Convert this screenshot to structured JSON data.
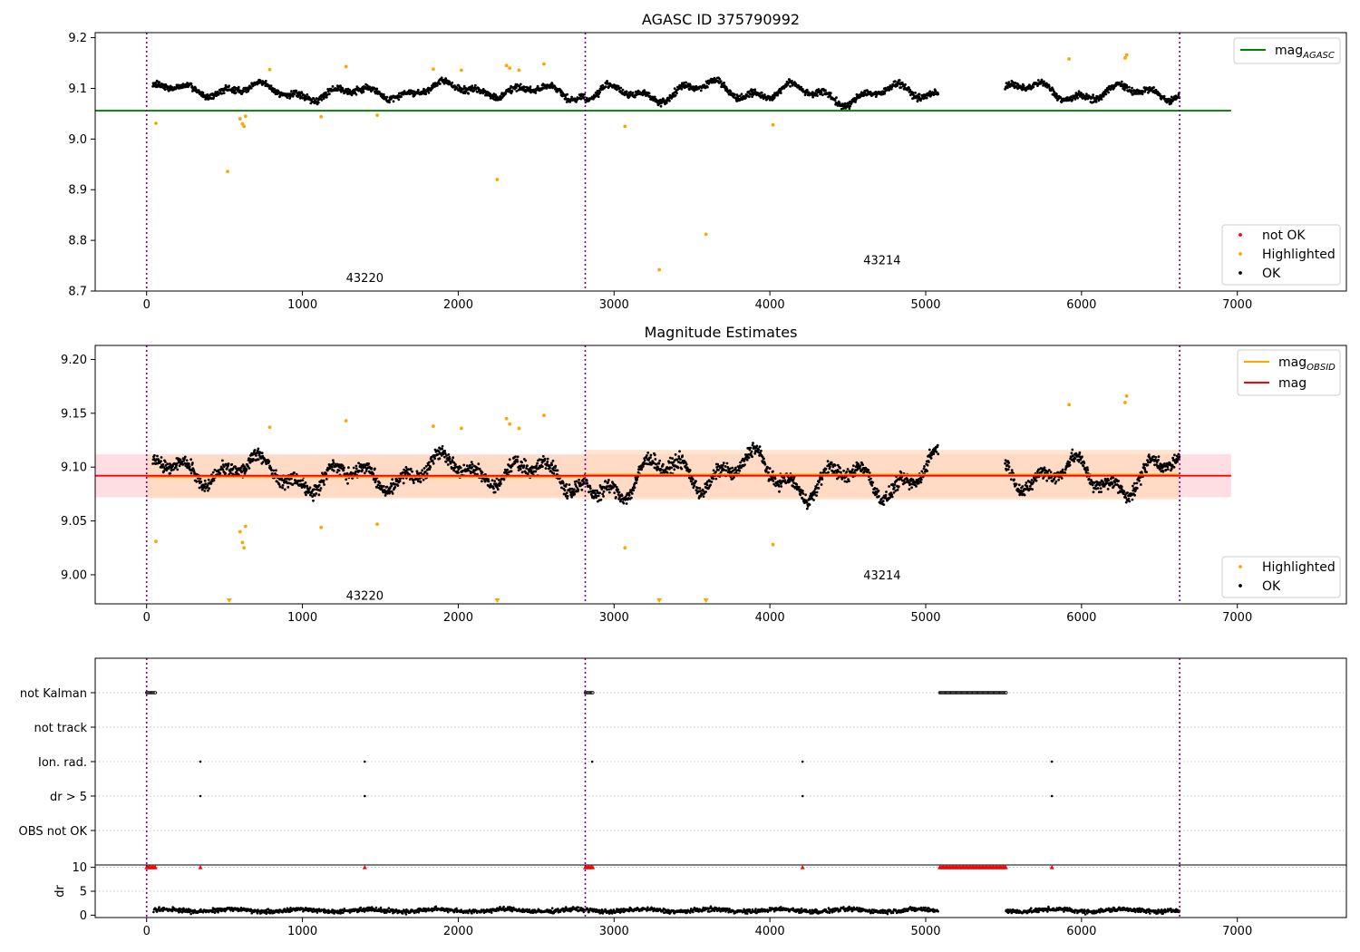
{
  "figure": {
    "colors": {
      "ok": "#000000",
      "highlighted": "#ffa500",
      "not_ok": "#ff0000",
      "mag_agasc": "#008000",
      "mag_obsid": "#ffa500",
      "mag": "#ff0000",
      "obs_boundary": "#800080",
      "band_global": "#ffb6c1",
      "band_obsid": "#ffdab9"
    },
    "obs_boundaries": [
      0,
      2815,
      6630
    ]
  },
  "chart_data": [
    {
      "type": "scatter",
      "title": "AGASC ID 375790992",
      "xlim": [
        -330,
        7700
      ],
      "ylim": [
        8.7,
        9.21
      ],
      "xticks": [
        0,
        1000,
        2000,
        3000,
        4000,
        5000,
        6000,
        7000
      ],
      "yticks": [
        8.7,
        8.8,
        8.9,
        9.0,
        9.1,
        9.2
      ],
      "ytick_labels": [
        "8.7",
        "8.8",
        "8.9",
        "9.0",
        "9.1",
        "9.2"
      ],
      "mag_agasc": 9.056,
      "mag_agasc_x_range": [
        -330,
        6960
      ],
      "obsids": [
        {
          "label": "43220",
          "x": 1400,
          "y": 8.725
        },
        {
          "label": "43214",
          "x": 4720,
          "y": 8.76
        }
      ],
      "legend_top": [
        {
          "label": "mag",
          "subscript": "AGASC",
          "color": "#008000"
        }
      ],
      "legend_bottom": [
        {
          "label": "not OK",
          "color": "#ff0000"
        },
        {
          "label": "Highlighted",
          "color": "#ffa500"
        },
        {
          "label": "OK",
          "color": "#000000"
        }
      ],
      "segments": [
        {
          "x_start": 40,
          "x_end": 2810,
          "base": 9.094,
          "amp": 0.018
        },
        {
          "x_start": 2815,
          "x_end": 5080,
          "base": 9.092,
          "amp": 0.024
        },
        {
          "x_start": 5510,
          "x_end": 6630,
          "base": 9.095,
          "amp": 0.022
        }
      ],
      "highlighted_points": [
        {
          "x": 60,
          "y": 9.031
        },
        {
          "x": 520,
          "y": 8.936
        },
        {
          "x": 600,
          "y": 9.04
        },
        {
          "x": 615,
          "y": 9.03
        },
        {
          "x": 625,
          "y": 9.025
        },
        {
          "x": 635,
          "y": 9.045
        },
        {
          "x": 790,
          "y": 9.137
        },
        {
          "x": 1120,
          "y": 9.044
        },
        {
          "x": 1280,
          "y": 9.143
        },
        {
          "x": 1480,
          "y": 9.047
        },
        {
          "x": 1840,
          "y": 9.138
        },
        {
          "x": 2020,
          "y": 9.136
        },
        {
          "x": 2250,
          "y": 8.92
        },
        {
          "x": 2310,
          "y": 9.145
        },
        {
          "x": 2330,
          "y": 9.14
        },
        {
          "x": 2390,
          "y": 9.136
        },
        {
          "x": 2550,
          "y": 9.148
        },
        {
          "x": 3070,
          "y": 9.025
        },
        {
          "x": 3290,
          "y": 8.742
        },
        {
          "x": 3590,
          "y": 8.812
        },
        {
          "x": 4020,
          "y": 9.028
        },
        {
          "x": 5920,
          "y": 9.158
        },
        {
          "x": 6280,
          "y": 9.16
        },
        {
          "x": 6290,
          "y": 9.166
        }
      ]
    },
    {
      "type": "scatter",
      "title": "Magnitude Estimates",
      "xlim": [
        -330,
        7700
      ],
      "ylim": [
        8.973,
        9.213
      ],
      "xticks": [
        0,
        1000,
        2000,
        3000,
        4000,
        5000,
        6000,
        7000
      ],
      "yticks": [
        9.0,
        9.05,
        9.1,
        9.15,
        9.2
      ],
      "ytick_labels": [
        "9.00",
        "9.05",
        "9.10",
        "9.15",
        "9.20"
      ],
      "mag": 9.092,
      "mag_band": [
        9.072,
        9.112
      ],
      "mag_x_range": [
        -330,
        6960
      ],
      "mag_obsid": [
        {
          "x_start": 0,
          "x_end": 2815,
          "value": 9.091,
          "band": [
            9.071,
            9.111
          ]
        },
        {
          "x_start": 2815,
          "x_end": 6630,
          "value": 9.093,
          "band": [
            9.07,
            9.116
          ]
        }
      ],
      "obsids": [
        {
          "label": "43220",
          "x": 1400,
          "y": 8.98
        },
        {
          "label": "43214",
          "x": 4720,
          "y": 8.999
        }
      ],
      "legend_top": [
        {
          "label": "mag",
          "subscript": "OBSID",
          "color": "#ffa500"
        },
        {
          "label": "mag",
          "subscript": "",
          "color": "#ff0000"
        }
      ],
      "legend_bottom": [
        {
          "label": "Highlighted",
          "color": "#ffa500"
        },
        {
          "label": "OK",
          "color": "#000000"
        }
      ],
      "clipped_markers_x": [
        530,
        2250,
        3290,
        3590
      ]
    },
    {
      "type": "scatter",
      "xlim": [
        -330,
        7700
      ],
      "categories": [
        "not Kalman",
        "not track",
        "Ion. rad.",
        "dr > 5",
        "OBS not OK"
      ],
      "flags": {
        "not Kalman": [
          [
            0,
            60
          ],
          [
            2815,
            2870
          ],
          [
            5090,
            5520
          ]
        ],
        "not track": [],
        "Ion. rad.": [
          [
            345,
            345
          ],
          [
            1400,
            1400
          ],
          [
            2860,
            2860
          ],
          [
            4210,
            4210
          ],
          [
            5810,
            5810
          ]
        ],
        "dr > 5": [
          [
            345,
            345
          ],
          [
            1400,
            1400
          ],
          [
            4210,
            4210
          ],
          [
            5810,
            5810
          ]
        ],
        "OBS not OK": []
      }
    },
    {
      "type": "scatter",
      "ylabel": "dr",
      "xlim": [
        -330,
        7700
      ],
      "ylim": [
        -0.5,
        10.5
      ],
      "xticks": [
        0,
        1000,
        2000,
        3000,
        4000,
        5000,
        6000,
        7000
      ],
      "yticks": [
        0,
        5,
        10
      ],
      "ytick_labels": [
        "0",
        "5",
        "10"
      ],
      "clipped_at": 10,
      "clipped_x_ranges": [
        [
          0,
          60
        ],
        [
          345,
          345
        ],
        [
          1400,
          1400
        ],
        [
          2815,
          2870
        ],
        [
          4210,
          4210
        ],
        [
          5090,
          5520
        ],
        [
          5810,
          5810
        ]
      ],
      "gap": [
        5090,
        5510
      ],
      "dr_typical": 1.0
    }
  ]
}
